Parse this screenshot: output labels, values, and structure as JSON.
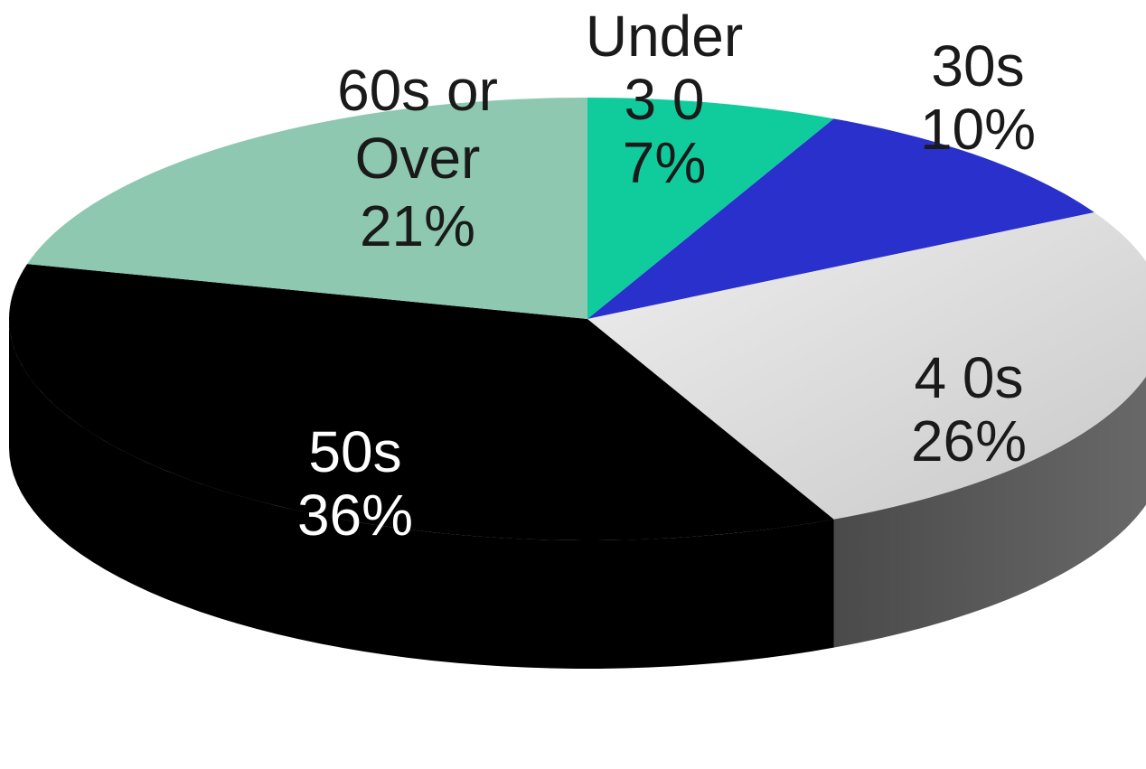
{
  "chart_data": {
    "type": "pie",
    "style": "3d",
    "slices": [
      {
        "key": "under30",
        "label_lines": [
          "Under",
          "3 0",
          "7%"
        ],
        "value": 7,
        "color": "#10cc9c",
        "side_color": "#0a8a6a",
        "label_color": "#1a1a1a"
      },
      {
        "key": "thirties",
        "label_lines": [
          "30s",
          "10%"
        ],
        "value": 10,
        "color": "#2a30cc",
        "side_color": "#161a80",
        "label_color": "#1a1a1a"
      },
      {
        "key": "forties",
        "label_lines": [
          "4 0s",
          "26%"
        ],
        "value": 26,
        "color": "#dedede",
        "side_color": "#5a5a5a",
        "label_color": "#1a1a1a"
      },
      {
        "key": "fifties",
        "label_lines": [
          "50s",
          "36%"
        ],
        "value": 36,
        "color": "#000000",
        "side_color": "#000000",
        "label_color": "#ffffff"
      },
      {
        "key": "sixties",
        "label_lines": [
          "60s or",
          "Over",
          "21%"
        ],
        "value": 21,
        "color": "#8ec8b0",
        "side_color": "#5e9a82",
        "label_color": "#1a1a1a"
      }
    ]
  }
}
